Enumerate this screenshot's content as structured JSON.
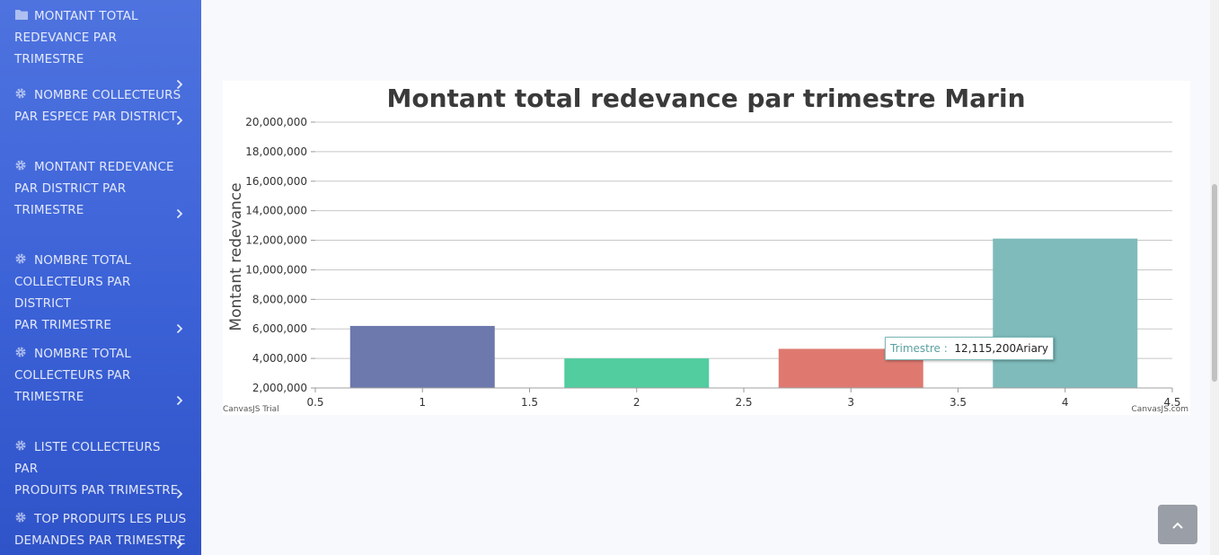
{
  "sidebar": {
    "items": [
      {
        "icon": "folder-icon",
        "lines": [
          "MONTANT TOTAL",
          "REDEVANCE PAR TRIMESTRE"
        ]
      },
      {
        "icon": "gear-icon",
        "lines": [
          "NOMBRE COLLECTEURS",
          "PAR ESPECE PAR DISTRICT"
        ]
      },
      {
        "icon": "gear-icon",
        "lines": [
          "MONTANT REDEVANCE",
          "PAR DISTRICT PAR",
          "TRIMESTRE"
        ]
      },
      {
        "icon": "gear-icon",
        "lines": [
          "NOMBRE TOTAL",
          "COLLECTEURS PAR DISTRICT",
          "PAR TRIMESTRE"
        ]
      },
      {
        "icon": "gear-icon",
        "lines": [
          "NOMBRE TOTAL",
          "COLLECTEURS PAR",
          "TRIMESTRE"
        ]
      },
      {
        "icon": "gear-icon",
        "lines": [
          "LISTE COLLECTEURS PAR",
          "PRODUITS PAR TRIMESTRE"
        ]
      },
      {
        "icon": "gear-icon",
        "lines": [
          "TOP PRODUITS LES PLUS",
          "DEMANDES PAR TRIMESTRE"
        ]
      }
    ]
  },
  "chart_data": {
    "type": "bar",
    "title": "Montant total redevance par trimestre Marin",
    "ylabel": "Montant redevance",
    "xlabel": "",
    "x": [
      1,
      2,
      3,
      4
    ],
    "values": [
      6200000,
      4000000,
      4650000,
      12115200
    ],
    "colors": [
      "#6d78ad",
      "#51cda0",
      "#df7970",
      "#7fbbbb"
    ],
    "xlim": [
      0.5,
      4.5
    ],
    "ylim": [
      2000000,
      20000000
    ],
    "x_ticks": [
      "0.5",
      "1",
      "1.5",
      "2",
      "2.5",
      "3",
      "3.5",
      "4",
      "4.5"
    ],
    "y_ticks": [
      "2,000,000",
      "4,000,000",
      "6,000,000",
      "8,000,000",
      "10,000,000",
      "12,000,000",
      "14,000,000",
      "16,000,000",
      "18,000,000",
      "20,000,000"
    ],
    "grid": true,
    "credit_left": "CanvasJS Trial",
    "credit_right": "CanvasJS.com",
    "tooltip": {
      "label": "Trimestre :",
      "value": "12,115,200Ariary"
    }
  },
  "scroll_top": {
    "icon": "chevron-up-icon"
  }
}
